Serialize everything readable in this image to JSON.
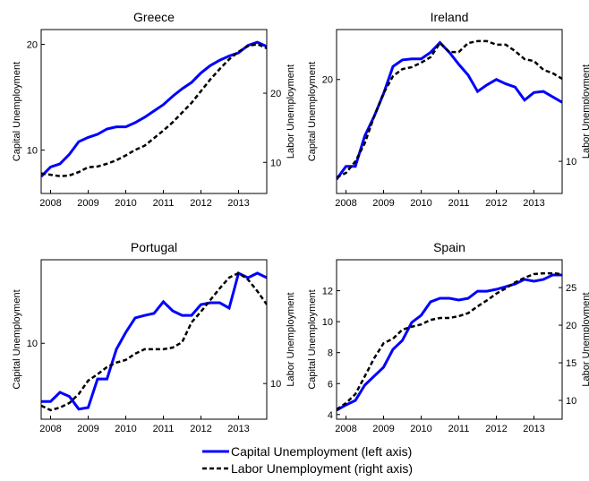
{
  "chart_data": [
    {
      "type": "line",
      "title": "Greece",
      "ylabel": "Capital Unemployment",
      "y2label": "Labor Unemployment",
      "x": [
        2007.75,
        2008,
        2008.25,
        2008.5,
        2008.75,
        2009,
        2009.25,
        2009.5,
        2009.75,
        2010,
        2010.25,
        2010.5,
        2010.75,
        2011,
        2011.25,
        2011.5,
        2011.75,
        2012,
        2012.25,
        2012.5,
        2012.75,
        2013,
        2013.25,
        2013.5,
        2013.75
      ],
      "xlim": [
        2007.75,
        2013.75
      ],
      "xticks": [
        2008,
        2009,
        2010,
        2011,
        2012,
        2013
      ],
      "ylim": [
        5.9,
        21.4
      ],
      "yticks": [
        10,
        20
      ],
      "y2lim": [
        5.5,
        29.2
      ],
      "y2ticks": [
        10,
        20
      ],
      "legend": "bottom",
      "series": [
        {
          "name": "Capital Unemployment (left axis)",
          "color": "#0000ff",
          "linestyle": "solid",
          "values": [
            7.5,
            8.4,
            8.7,
            9.6,
            10.8,
            11.2,
            11.5,
            12.0,
            12.2,
            12.2,
            12.6,
            13.1,
            13.7,
            14.3,
            15.1,
            15.8,
            16.4,
            17.3,
            18.0,
            18.5,
            18.9,
            19.2,
            19.9,
            20.2,
            19.8
          ]
        },
        {
          "name": "Labor Unemployment (right axis)",
          "color": "#000000",
          "linestyle": "dashed",
          "axis": "y2",
          "values": [
            8.4,
            8.2,
            8.0,
            8.1,
            8.6,
            9.3,
            9.4,
            9.8,
            10.3,
            11.0,
            11.8,
            12.4,
            13.5,
            14.6,
            15.8,
            17.2,
            18.6,
            20.3,
            22.0,
            23.5,
            24.9,
            26.0,
            26.8,
            27.1,
            26.5
          ]
        }
      ]
    },
    {
      "type": "line",
      "title": "Ireland",
      "ylabel": "Capital Unemployment",
      "y2label": "Labor Unemployment",
      "x": [
        2007.75,
        2008,
        2008.25,
        2008.5,
        2008.75,
        2009,
        2009.25,
        2009.5,
        2009.75,
        2010,
        2010.25,
        2010.5,
        2010.75,
        2011,
        2011.25,
        2011.5,
        2011.75,
        2012,
        2012.25,
        2012.5,
        2012.75,
        2013,
        2013.25,
        2013.5,
        2013.75
      ],
      "xlim": [
        2007.75,
        2013.75
      ],
      "xticks": [
        2008,
        2009,
        2010,
        2011,
        2012,
        2013
      ],
      "ylim": [
        9.5,
        24.6
      ],
      "yticks": [
        20
      ],
      "y2lim": [
        9,
        14.1
      ],
      "y2ticks": [
        10
      ],
      "series": [
        {
          "name": "Capital Unemployment (left axis)",
          "color": "#0000ff",
          "linestyle": "solid",
          "values": [
            10.8,
            12.0,
            12.0,
            14.8,
            16.6,
            18.7,
            21.2,
            21.8,
            21.9,
            21.9,
            22.5,
            23.4,
            22.5,
            21.4,
            20.4,
            18.9,
            19.5,
            20.0,
            19.6,
            19.3,
            18.1,
            18.8,
            18.9,
            18.4,
            17.9
          ]
        },
        {
          "name": "Labor Unemployment (right axis)",
          "color": "#000000",
          "linestyle": "dashed",
          "axis": "y2",
          "values": [
            9.5,
            9.64,
            10.0,
            10.56,
            11.4,
            12.12,
            12.65,
            12.87,
            12.93,
            13.07,
            13.24,
            13.68,
            13.4,
            13.4,
            13.68,
            13.74,
            13.74,
            13.63,
            13.63,
            13.43,
            13.18,
            13.12,
            12.85,
            12.74,
            12.57
          ]
        }
      ]
    },
    {
      "type": "line",
      "title": "Portugal",
      "ylabel": "Capital Unemployment",
      "y2label": "Labor Unemployment",
      "x": [
        2007.75,
        2008,
        2008.25,
        2008.5,
        2008.75,
        2009,
        2009.25,
        2009.5,
        2009.75,
        2010,
        2010.25,
        2010.5,
        2010.75,
        2011,
        2011.25,
        2011.5,
        2011.75,
        2012,
        2012.25,
        2012.5,
        2012.75,
        2013,
        2013.25,
        2013.5,
        2013.75
      ],
      "xlim": [
        2007.75,
        2013.75
      ],
      "xticks": [
        2008,
        2009,
        2010,
        2011,
        2012,
        2013
      ],
      "ylim": [
        7,
        13.3
      ],
      "yticks": [
        10
      ],
      "y2lim": [
        8.5,
        15.2
      ],
      "y2ticks": [
        10
      ],
      "series": [
        {
          "name": "Capital Unemployment (left axis)",
          "color": "#0000ff",
          "linestyle": "solid",
          "values": [
            7.7,
            7.7,
            8.06,
            7.9,
            7.4,
            7.46,
            8.59,
            8.59,
            9.76,
            10.43,
            11.0,
            11.1,
            11.18,
            11.64,
            11.28,
            11.1,
            11.1,
            11.53,
            11.6,
            11.6,
            11.39,
            12.77,
            12.59,
            12.77,
            12.59
          ]
        },
        {
          "name": "Labor Unemployment (right axis)",
          "color": "#000000",
          "linestyle": "dashed",
          "axis": "y2",
          "values": [
            9.07,
            8.88,
            8.99,
            9.18,
            9.56,
            10.12,
            10.39,
            10.69,
            10.88,
            10.99,
            11.25,
            11.44,
            11.44,
            11.44,
            11.51,
            11.74,
            12.57,
            13.02,
            13.51,
            14.0,
            14.45,
            14.64,
            14.37,
            13.88,
            13.32
          ]
        }
      ]
    },
    {
      "type": "line",
      "title": "Spain",
      "ylabel": "Capital Unemployment",
      "y2label": "Labor Unemployment",
      "x": [
        2007.75,
        2008,
        2008.25,
        2008.5,
        2008.75,
        2009,
        2009.25,
        2009.5,
        2009.75,
        2010,
        2010.25,
        2010.5,
        2010.75,
        2011,
        2011.25,
        2011.5,
        2011.75,
        2012,
        2012.25,
        2012.5,
        2012.75,
        2013,
        2013.25,
        2013.5,
        2013.75
      ],
      "xlim": [
        2007.75,
        2013.75
      ],
      "xticks": [
        2008,
        2009,
        2010,
        2011,
        2012,
        2013
      ],
      "ylim": [
        3.7,
        14
      ],
      "yticks": [
        4,
        6,
        8,
        10,
        12
      ],
      "y2lim": [
        7.5,
        28.7
      ],
      "y2ticks": [
        10,
        15,
        20,
        25
      ],
      "series": [
        {
          "name": "Capital Unemployment (left axis)",
          "color": "#0000ff",
          "linestyle": "solid",
          "values": [
            4.28,
            4.62,
            4.91,
            5.9,
            6.48,
            7.06,
            8.21,
            8.79,
            9.95,
            10.41,
            11.28,
            11.51,
            11.51,
            11.4,
            11.51,
            11.97,
            11.97,
            12.09,
            12.26,
            12.44,
            12.73,
            12.61,
            12.73,
            13.02,
            13.02
          ]
        },
        {
          "name": "Labor Unemployment (right axis)",
          "color": "#000000",
          "linestyle": "dashed",
          "axis": "y2",
          "values": [
            8.8,
            9.64,
            10.83,
            13.2,
            15.6,
            17.6,
            18.2,
            19.4,
            19.8,
            20.1,
            20.7,
            20.96,
            20.96,
            21.2,
            21.6,
            22.5,
            23.3,
            24.2,
            24.9,
            25.7,
            26.3,
            26.8,
            26.9,
            26.9,
            26.8
          ]
        }
      ]
    }
  ]
}
